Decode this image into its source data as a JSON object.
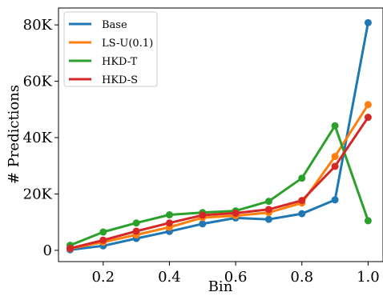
{
  "chart_data": {
    "type": "line",
    "title": "",
    "xlabel": "Bin",
    "ylabel": "# Predictions",
    "x": [
      0.1,
      0.2,
      0.3,
      0.4,
      0.5,
      0.6,
      0.7,
      0.8,
      0.9,
      1.0
    ],
    "xlim": [
      0.065,
      1.045
    ],
    "ylim": [
      -4000,
      86000
    ],
    "xticks": [
      0.2,
      0.4,
      0.6,
      0.8,
      1.0
    ],
    "xtick_labels": [
      "0.2",
      "0.4",
      "0.6",
      "0.8",
      "1.0"
    ],
    "yticks": [
      0,
      20000,
      40000,
      60000,
      80000
    ],
    "ytick_labels": [
      "0",
      "20K",
      "40K",
      "60K",
      "80K"
    ],
    "grid": false,
    "legend_position": "top-left",
    "series": [
      {
        "name": "Base",
        "color": "#1f77b4",
        "values": [
          200,
          1600,
          4200,
          6700,
          9400,
          11500,
          11000,
          13000,
          17900,
          80800
        ]
      },
      {
        "name": "LS-U(0.1)",
        "color": "#ff7f0e",
        "values": [
          600,
          2900,
          5500,
          8200,
          11600,
          12300,
          13400,
          16800,
          33300,
          51700
        ]
      },
      {
        "name": "HKD-T",
        "color": "#2ca02c",
        "values": [
          1800,
          6500,
          9700,
          12600,
          13400,
          14000,
          17400,
          25600,
          44200,
          10500
        ]
      },
      {
        "name": "HKD-S",
        "color": "#d62728",
        "values": [
          700,
          3600,
          6800,
          9700,
          12500,
          13200,
          14500,
          17700,
          29800,
          47200
        ]
      }
    ]
  }
}
